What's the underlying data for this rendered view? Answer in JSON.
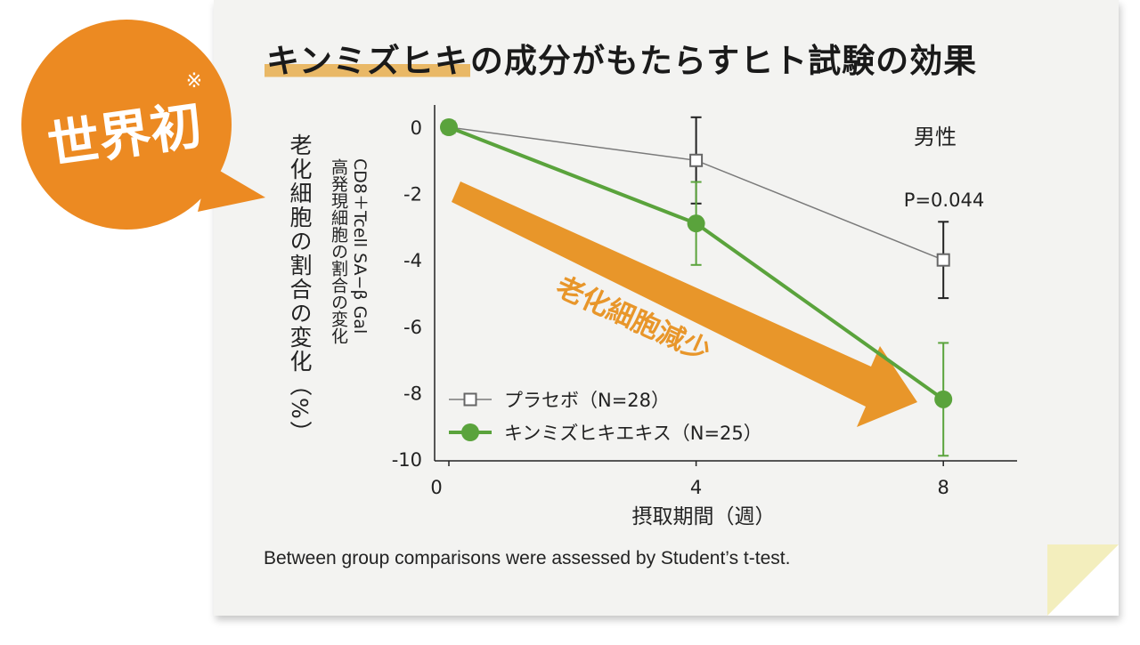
{
  "badge": {
    "text": "世界初",
    "mark": "※",
    "color": "#ec8a22"
  },
  "title": {
    "highlight": "キンミズヒキ",
    "rest": "の成分がもたらすヒト試験の効果",
    "highlight_color": "#e9b866"
  },
  "y_label_main": "老化細胞の割合の変化（%）",
  "y_label_sub_lines": [
    "CD8＋Tcell SA−β Gal",
    "高発現細胞の割合の変化"
  ],
  "footnote": "Between group comparisons were assessed by Student’s t-test.",
  "annotation_arrow": {
    "text": "老化細胞減少",
    "color": "#e8962a"
  },
  "chart_data": {
    "type": "line",
    "panel_label": "男性",
    "xlabel": "摂取期間（週）",
    "ylabel": "老化細胞の割合の変化（%）",
    "x": [
      0,
      4,
      8
    ],
    "x_ticks": [
      "0",
      "4",
      "8"
    ],
    "ylim": [
      -10,
      0
    ],
    "y_ticks": [
      "0",
      "-2",
      "-4",
      "-6",
      "-8",
      "-10"
    ],
    "grid": false,
    "legend_position": "bottom-left",
    "p_value_label": "P=0.044",
    "series": [
      {
        "name": "プラセボ（N=28）",
        "values": [
          0,
          -1,
          -4
        ],
        "error": [
          0,
          1.3,
          1.15
        ],
        "color": "#7a7a7a",
        "marker": "open-square"
      },
      {
        "name": "キンミズヒキエキス（N=25）",
        "values": [
          0,
          -2.9,
          -8.2
        ],
        "error": [
          0,
          1.25,
          1.7
        ],
        "color": "#5aa33c",
        "marker": "filled-circle"
      }
    ]
  }
}
